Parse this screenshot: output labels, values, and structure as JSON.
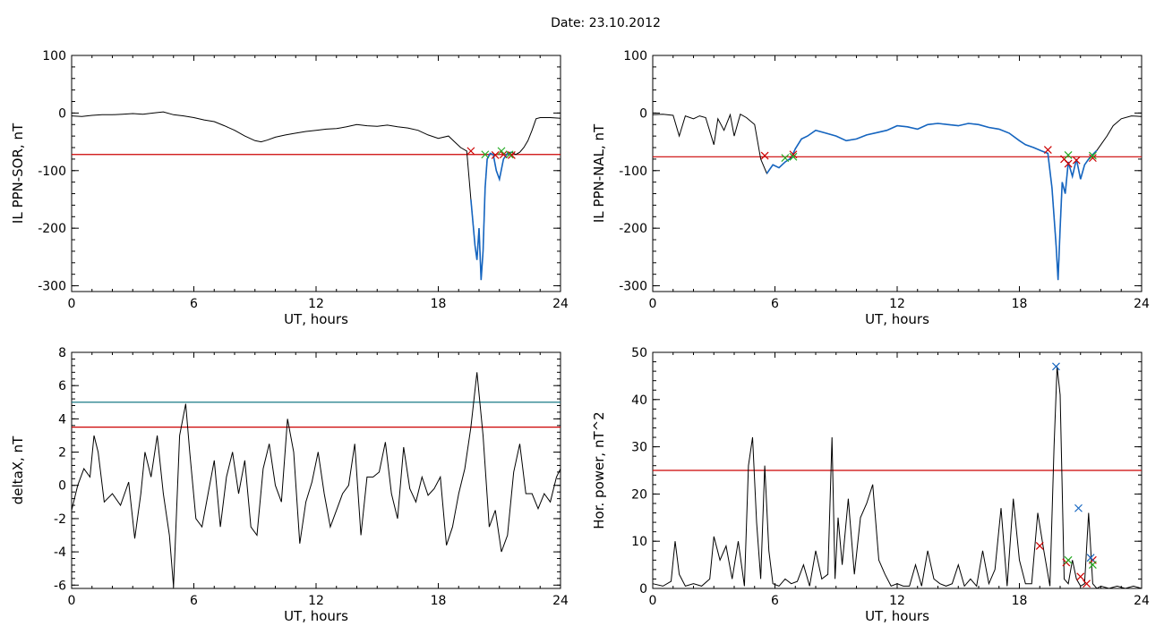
{
  "page": {
    "title": "Date:  23.10.2012"
  },
  "colors": {
    "line": "#000000",
    "threshold": "#cc0000",
    "threshold2": "#1a7a86",
    "highlight": "#1565c0",
    "markerRed": "#cc0000",
    "markerGreen": "#22aa22",
    "markerBlue": "#1565c0"
  },
  "chart_data": [
    {
      "type": "line",
      "title": "",
      "xlabel": "UT, hours",
      "ylabel": "IL PPN-SOR, nT",
      "xlim": [
        0,
        24
      ],
      "ylim": [
        -310,
        100
      ],
      "xticks": [
        0,
        6,
        12,
        18,
        24
      ],
      "yticks": [
        100,
        0,
        -100,
        -200,
        -300
      ],
      "series": [
        {
          "x": [
            0,
            0.5,
            1,
            1.5,
            2,
            2.5,
            3,
            3.5,
            4,
            4.5,
            5,
            5.5,
            6,
            6.5,
            7,
            7.5,
            8,
            8.5,
            9,
            9.3,
            9.6,
            10,
            10.5,
            11,
            11.5,
            12,
            12.5,
            13,
            13.5,
            14,
            14.5,
            15,
            15.5,
            16,
            16.5,
            17,
            17.5,
            18,
            18.5,
            18.8,
            19.1,
            19.4,
            19.6,
            19.8,
            19.9,
            20.0,
            20.1,
            20.2,
            20.3,
            20.4,
            20.55,
            20.7,
            20.85,
            21.0,
            21.2,
            21.4,
            21.6,
            21.8,
            22.0,
            22.2,
            22.4,
            22.6,
            22.8,
            23.0,
            23.5,
            24
          ],
          "y": [
            -5,
            -6,
            -4,
            -3,
            -3,
            -2,
            -1,
            -2,
            0,
            2,
            -3,
            -5,
            -8,
            -12,
            -15,
            -22,
            -30,
            -40,
            -48,
            -50,
            -47,
            -42,
            -38,
            -35,
            -32,
            -30,
            -28,
            -27,
            -24,
            -20,
            -22,
            -23,
            -21,
            -24,
            -26,
            -30,
            -38,
            -44,
            -40,
            -50,
            -60,
            -66,
            -150,
            -230,
            -255,
            -200,
            -290,
            -240,
            -130,
            -80,
            -70,
            -72,
            -100,
            -115,
            -80,
            -70,
            -68,
            -72,
            -68,
            -60,
            -48,
            -30,
            -10,
            -8,
            -8,
            -9
          ]
        }
      ],
      "highlight_range": [
        19.6,
        21.7
      ],
      "thresholds": [
        -72
      ],
      "markers": [
        {
          "x": 19.6,
          "y": -66,
          "color": "red"
        },
        {
          "x": 20.8,
          "y": -73,
          "color": "red"
        },
        {
          "x": 21.2,
          "y": -72,
          "color": "red"
        },
        {
          "x": 21.6,
          "y": -73,
          "color": "red"
        },
        {
          "x": 20.3,
          "y": -72,
          "color": "green"
        },
        {
          "x": 21.1,
          "y": -66,
          "color": "green"
        },
        {
          "x": 21.5,
          "y": -72,
          "color": "green"
        }
      ]
    },
    {
      "type": "line",
      "title": "",
      "xlabel": "UT, hours",
      "ylabel": "IL PPN-NAL, nT",
      "xlim": [
        0,
        24
      ],
      "ylim": [
        -310,
        100
      ],
      "xticks": [
        0,
        6,
        12,
        18,
        24
      ],
      "yticks": [
        100,
        0,
        -100,
        -200,
        -300
      ],
      "series": [
        {
          "x": [
            0,
            0.5,
            1,
            1.3,
            1.6,
            2,
            2.3,
            2.6,
            3,
            3.2,
            3.5,
            3.8,
            4,
            4.3,
            4.6,
            5,
            5.3,
            5.6,
            5.9,
            6.2,
            6.5,
            6.8,
            7.0,
            7.3,
            7.6,
            8,
            8.5,
            9,
            9.5,
            10,
            10.5,
            11,
            11.5,
            12,
            12.5,
            13,
            13.5,
            14,
            14.5,
            15,
            15.5,
            16,
            16.5,
            17,
            17.5,
            18,
            18.3,
            18.7,
            19.1,
            19.4,
            19.6,
            19.8,
            19.9,
            20.0,
            20.1,
            20.25,
            20.4,
            20.6,
            20.8,
            21.0,
            21.2,
            21.4,
            21.6,
            21.8,
            22.0,
            22.3,
            22.6,
            23.0,
            23.5,
            24
          ],
          "y": [
            -3,
            -2,
            -4,
            -40,
            -5,
            -10,
            -5,
            -8,
            -55,
            -10,
            -30,
            -3,
            -40,
            -2,
            -8,
            -20,
            -80,
            -105,
            -90,
            -95,
            -85,
            -78,
            -62,
            -45,
            -40,
            -30,
            -35,
            -40,
            -48,
            -45,
            -38,
            -34,
            -30,
            -22,
            -24,
            -28,
            -20,
            -18,
            -20,
            -22,
            -18,
            -20,
            -25,
            -28,
            -35,
            -48,
            -55,
            -60,
            -66,
            -70,
            -130,
            -230,
            -290,
            -200,
            -120,
            -140,
            -85,
            -110,
            -80,
            -115,
            -90,
            -80,
            -72,
            -65,
            -55,
            -40,
            -22,
            -10,
            -5,
            -6
          ]
        }
      ],
      "highlight_range": [
        5.4,
        21.9
      ],
      "thresholds": [
        -76
      ],
      "markers": [
        {
          "x": 5.5,
          "y": -74,
          "color": "red"
        },
        {
          "x": 6.9,
          "y": -72,
          "color": "red"
        },
        {
          "x": 19.4,
          "y": -64,
          "color": "red"
        },
        {
          "x": 20.2,
          "y": -80,
          "color": "red"
        },
        {
          "x": 20.4,
          "y": -88,
          "color": "red"
        },
        {
          "x": 20.8,
          "y": -82,
          "color": "red"
        },
        {
          "x": 21.6,
          "y": -78,
          "color": "red"
        },
        {
          "x": 6.5,
          "y": -78,
          "color": "green"
        },
        {
          "x": 6.9,
          "y": -76,
          "color": "green"
        },
        {
          "x": 20.4,
          "y": -73,
          "color": "green"
        },
        {
          "x": 21.6,
          "y": -74,
          "color": "green"
        }
      ]
    },
    {
      "type": "line",
      "title": "",
      "xlabel": "UT, hours",
      "ylabel": "deltaX, nT",
      "xlim": [
        0,
        24
      ],
      "ylim": [
        -6.2,
        8
      ],
      "xticks": [
        0,
        6,
        12,
        18,
        24
      ],
      "yticks": [
        8,
        6,
        4,
        2,
        0,
        -2,
        -4,
        -6
      ],
      "series": [
        {
          "x": [
            0,
            0.3,
            0.6,
            0.9,
            1.1,
            1.3,
            1.6,
            2.0,
            2.4,
            2.8,
            3.1,
            3.4,
            3.6,
            3.9,
            4.2,
            4.5,
            4.8,
            5.0,
            5.3,
            5.6,
            5.8,
            6.1,
            6.4,
            6.7,
            7.0,
            7.3,
            7.6,
            7.9,
            8.2,
            8.5,
            8.8,
            9.1,
            9.4,
            9.7,
            10.0,
            10.3,
            10.6,
            10.9,
            11.2,
            11.5,
            11.8,
            12.1,
            12.4,
            12.7,
            13.0,
            13.3,
            13.6,
            13.9,
            14.2,
            14.5,
            14.8,
            15.1,
            15.4,
            15.7,
            16.0,
            16.3,
            16.6,
            16.9,
            17.2,
            17.5,
            17.8,
            18.1,
            18.4,
            18.7,
            19.0,
            19.3,
            19.6,
            19.9,
            20.2,
            20.5,
            20.8,
            21.1,
            21.4,
            21.7,
            22.0,
            22.3,
            22.6,
            22.9,
            23.2,
            23.5,
            23.8,
            24
          ],
          "y": [
            -1.5,
            0,
            1,
            0.5,
            3,
            2,
            -1,
            -0.5,
            -1.2,
            0.2,
            -3.2,
            -0.5,
            2,
            0.5,
            3,
            -0.5,
            -3,
            -6.1,
            3,
            4.9,
            2,
            -2,
            -2.5,
            -0.5,
            1.5,
            -2.5,
            0.5,
            2,
            -0.5,
            1.5,
            -2.5,
            -3,
            1,
            2.5,
            0,
            -1,
            4,
            2,
            -3.5,
            -1,
            0.2,
            2,
            -0.5,
            -2.5,
            -1.5,
            -0.5,
            0,
            2.5,
            -3,
            0.5,
            0.5,
            0.8,
            2.6,
            -0.5,
            -2,
            2.3,
            -0.2,
            -1,
            0.5,
            -0.6,
            -0.2,
            0.5,
            -3.6,
            -2.5,
            -0.5,
            1,
            3.5,
            6.8,
            3,
            -2.5,
            -1.5,
            -4,
            -3,
            0.8,
            2.5,
            -0.5,
            -0.5,
            -1.4,
            -0.5,
            -1,
            0.5,
            1
          ]
        }
      ],
      "thresholds": [
        5,
        3.5
      ]
    },
    {
      "type": "line",
      "title": "",
      "xlabel": "UT, hours",
      "ylabel": "Hor. power, nT^2",
      "xlim": [
        0,
        24
      ],
      "ylim": [
        0,
        50
      ],
      "xticks": [
        0,
        6,
        12,
        18,
        24
      ],
      "yticks": [
        50,
        40,
        30,
        20,
        10,
        0
      ],
      "series": [
        {
          "x": [
            0,
            0.5,
            0.9,
            1.1,
            1.3,
            1.6,
            2.0,
            2.4,
            2.8,
            3.0,
            3.3,
            3.6,
            3.9,
            4.2,
            4.5,
            4.7,
            4.9,
            5.1,
            5.3,
            5.5,
            5.7,
            5.9,
            6.2,
            6.5,
            6.8,
            7.1,
            7.4,
            7.7,
            8.0,
            8.3,
            8.6,
            8.8,
            8.95,
            9.1,
            9.3,
            9.6,
            9.9,
            10.2,
            10.5,
            10.8,
            11.1,
            11.4,
            11.7,
            12.0,
            12.3,
            12.6,
            12.9,
            13.2,
            13.5,
            13.8,
            14.1,
            14.4,
            14.7,
            15.0,
            15.3,
            15.6,
            15.9,
            16.2,
            16.5,
            16.8,
            17.1,
            17.4,
            17.7,
            18.0,
            18.3,
            18.6,
            18.9,
            19.2,
            19.5,
            19.7,
            19.85,
            20.0,
            20.2,
            20.4,
            20.6,
            20.8,
            21.0,
            21.2,
            21.4,
            21.6,
            21.8,
            22.0,
            22.4,
            22.8,
            23.2,
            23.6,
            24
          ],
          "y": [
            1,
            0.5,
            1.5,
            10,
            3,
            0.5,
            1,
            0.5,
            2,
            11,
            6,
            9,
            2,
            10,
            0.5,
            26,
            32,
            14,
            2,
            26,
            8,
            1,
            0.5,
            2,
            1,
            1.5,
            5,
            0.5,
            8,
            2,
            3,
            32,
            2,
            15,
            5,
            19,
            3,
            15,
            18,
            22,
            6,
            3,
            0.5,
            1,
            0.5,
            0.5,
            5,
            0.5,
            8,
            2,
            1,
            0.5,
            1,
            5,
            0.5,
            2,
            0.5,
            8,
            1,
            4,
            17,
            0.5,
            19,
            6,
            1,
            1,
            16,
            8,
            0.5,
            30,
            47,
            41,
            2,
            1,
            6,
            2,
            0.5,
            1,
            16,
            1,
            0,
            0.5,
            0,
            0.5,
            0,
            0.5,
            0
          ]
        }
      ],
      "thresholds": [
        25
      ],
      "markers": [
        {
          "x": 19.0,
          "y": 9,
          "color": "red"
        },
        {
          "x": 20.3,
          "y": 5.5,
          "color": "red"
        },
        {
          "x": 21.0,
          "y": 2.5,
          "color": "red"
        },
        {
          "x": 21.3,
          "y": 1,
          "color": "red"
        },
        {
          "x": 21.6,
          "y": 6,
          "color": "red"
        },
        {
          "x": 19.8,
          "y": 47,
          "color": "blue"
        },
        {
          "x": 20.9,
          "y": 17,
          "color": "blue"
        },
        {
          "x": 21.5,
          "y": 6.5,
          "color": "blue"
        },
        {
          "x": 20.4,
          "y": 6,
          "color": "green"
        },
        {
          "x": 21.6,
          "y": 5,
          "color": "green"
        }
      ]
    }
  ]
}
